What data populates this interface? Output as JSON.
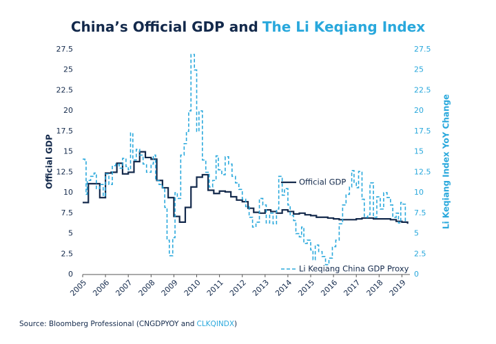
{
  "chart_data": {
    "type": "line",
    "step": true,
    "title": [
      {
        "text": "China’s Official GDP and",
        "color": "#13294b"
      },
      {
        "text": "The Li Keqiang Index",
        "color": "#29a8dc"
      }
    ],
    "source": [
      {
        "text": "Source: Bloomberg Professional (CNGDPYOY and",
        "color": "#13294b"
      },
      {
        "text": "CLKQINDX",
        "color": "#29a8dc"
      },
      {
        "text": ")",
        "color": "#13294b"
      }
    ],
    "ylabel": "Official GDP",
    "y2label": "Li Keqiang Index YoY Change",
    "xlim": [
      2005,
      2019.35
    ],
    "xticks": [
      2005,
      2006,
      2007,
      2008,
      2009,
      2010,
      2011,
      2012,
      2013,
      2014,
      2015,
      2016,
      2017,
      2018,
      2019
    ],
    "ylim": [
      0,
      27.5
    ],
    "yticks": [
      0,
      2.5,
      5,
      7.5,
      10,
      12.5,
      15,
      17.5,
      20,
      22.5,
      25,
      27.5
    ],
    "y2lim": [
      0,
      27.5
    ],
    "y2ticks": [
      0,
      2.5,
      5,
      7.5,
      10,
      12.5,
      15,
      17.5,
      20,
      22.5,
      25,
      27.5
    ],
    "series": [
      {
        "name": "Official GDP",
        "color": "#13294b",
        "dash": false,
        "x": [
          2005,
          2005.25,
          2005.5,
          2005.75,
          2006,
          2006.25,
          2006.5,
          2006.75,
          2007,
          2007.25,
          2007.5,
          2007.75,
          2008,
          2008.25,
          2008.5,
          2008.75,
          2009,
          2009.25,
          2009.5,
          2009.75,
          2010,
          2010.25,
          2010.5,
          2010.75,
          2011,
          2011.25,
          2011.5,
          2011.75,
          2012,
          2012.25,
          2012.5,
          2012.75,
          2013,
          2013.25,
          2013.5,
          2013.75,
          2014,
          2014.25,
          2014.5,
          2014.75,
          2015,
          2015.25,
          2015.5,
          2015.75,
          2016,
          2016.25,
          2016.5,
          2016.75,
          2017,
          2017.25,
          2017.5,
          2017.75,
          2018,
          2018.25,
          2018.5,
          2018.75,
          2019,
          2019.25
        ],
        "values": [
          8.8,
          11.1,
          11.1,
          9.4,
          12.4,
          12.5,
          13.6,
          12.3,
          12.5,
          13.8,
          15.0,
          14.3,
          14.1,
          11.5,
          10.6,
          9.4,
          7.1,
          6.4,
          8.2,
          10.7,
          11.9,
          12.2,
          10.3,
          9.9,
          10.2,
          10.1,
          9.5,
          9.1,
          8.9,
          8.1,
          7.6,
          7.5,
          7.9,
          7.7,
          7.5,
          7.9,
          7.7,
          7.4,
          7.5,
          7.3,
          7.2,
          7.0,
          7.0,
          6.9,
          6.8,
          6.7,
          6.7,
          6.7,
          6.8,
          6.9,
          6.9,
          6.8,
          6.8,
          6.8,
          6.7,
          6.5,
          6.4,
          6.2
        ]
      },
      {
        "name": "Li Keqiang China GDP Proxy",
        "color": "#29a8dc",
        "dash": true,
        "axis": "y2",
        "x": [
          2005,
          2005.1,
          2005.15,
          2005.2,
          2005.35,
          2005.5,
          2005.6,
          2005.75,
          2005.9,
          2006,
          2006.15,
          2006.3,
          2006.45,
          2006.6,
          2006.75,
          2006.9,
          2007,
          2007.1,
          2007.2,
          2007.35,
          2007.5,
          2007.65,
          2007.8,
          2008,
          2008.1,
          2008.2,
          2008.35,
          2008.5,
          2008.6,
          2008.7,
          2008.8,
          2008.95,
          2009.05,
          2009.15,
          2009.3,
          2009.45,
          2009.55,
          2009.65,
          2009.75,
          2009.9,
          2010,
          2010.1,
          2010.25,
          2010.4,
          2010.55,
          2010.7,
          2010.85,
          2010.95,
          2011.1,
          2011.25,
          2011.4,
          2011.55,
          2011.7,
          2011.85,
          2012,
          2012.15,
          2012.3,
          2012.45,
          2012.6,
          2012.75,
          2012.9,
          2013.05,
          2013.2,
          2013.35,
          2013.5,
          2013.6,
          2013.75,
          2013.85,
          2014,
          2014.1,
          2014.25,
          2014.35,
          2014.5,
          2014.6,
          2014.7,
          2014.85,
          2015,
          2015.1,
          2015.2,
          2015.35,
          2015.5,
          2015.65,
          2015.8,
          2015.95,
          2016.1,
          2016.25,
          2016.4,
          2016.55,
          2016.7,
          2016.8,
          2016.9,
          2017,
          2017.1,
          2017.25,
          2017.35,
          2017.5,
          2017.6,
          2017.75,
          2017.9,
          2018.05,
          2018.2,
          2018.35,
          2018.5,
          2018.6,
          2018.75,
          2018.85,
          2018.95,
          2019.05,
          2019.15
        ],
        "values": [
          14.1,
          14.0,
          9.8,
          11.5,
          12.0,
          12.4,
          10.5,
          11.0,
          9.6,
          12.3,
          11.0,
          13.3,
          13.5,
          13.0,
          14.2,
          13.2,
          12.8,
          17.3,
          14.0,
          15.3,
          14.6,
          13.5,
          12.5,
          13.5,
          14.6,
          11.5,
          11.0,
          10.6,
          8.2,
          4.2,
          2.3,
          4.5,
          10.0,
          9.3,
          14.6,
          16.0,
          17.5,
          20.0,
          26.9,
          25.0,
          17.5,
          20.0,
          14.0,
          12.5,
          10.7,
          11.5,
          14.5,
          12.8,
          12.2,
          14.4,
          13.5,
          12.0,
          11.2,
          10.4,
          9.2,
          8.3,
          7.0,
          5.8,
          6.4,
          9.3,
          8.5,
          6.3,
          7.5,
          6.2,
          8.0,
          12.0,
          9.7,
          10.5,
          8.5,
          7.2,
          6.6,
          5.0,
          4.6,
          5.8,
          3.8,
          4.2,
          3.0,
          1.8,
          3.6,
          2.8,
          2.2,
          1.2,
          2.0,
          3.4,
          4.2,
          6.2,
          8.5,
          9.8,
          10.7,
          12.7,
          11.2,
          10.6,
          12.6,
          9.2,
          7.0,
          7.3,
          11.2,
          7.0,
          9.5,
          8.0,
          10.0,
          9.4,
          8.5,
          7.0,
          7.5,
          6.3,
          8.8,
          8.6,
          6.3
        ]
      }
    ]
  }
}
